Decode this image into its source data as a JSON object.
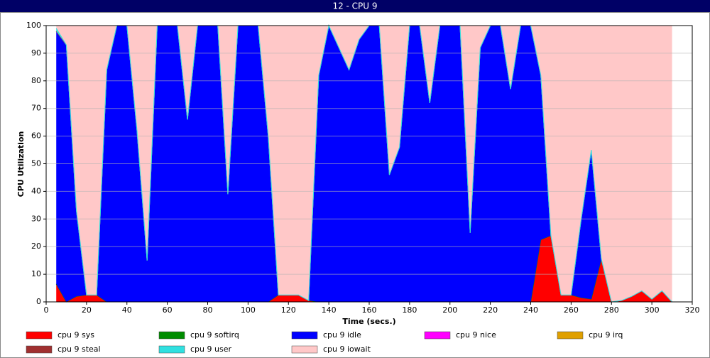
{
  "chart_data": {
    "type": "stacked_area",
    "title": "12 - CPU 9",
    "x_label": "Time (secs.)",
    "y_label": "CPU Utilization",
    "xlim": [
      0,
      320
    ],
    "xticks": [
      0,
      20,
      40,
      60,
      80,
      100,
      120,
      140,
      160,
      180,
      200,
      220,
      240,
      260,
      280,
      300,
      320
    ],
    "ylim": [
      0,
      100
    ],
    "yticks": [
      0,
      10,
      20,
      30,
      40,
      50,
      60,
      70,
      80,
      90,
      100
    ],
    "grid": true,
    "x": [
      5,
      10,
      15,
      20,
      25,
      30,
      35,
      40,
      45,
      50,
      55,
      60,
      65,
      70,
      75,
      80,
      85,
      90,
      95,
      100,
      105,
      110,
      115,
      120,
      125,
      130,
      135,
      140,
      145,
      150,
      155,
      160,
      165,
      170,
      175,
      180,
      185,
      190,
      195,
      200,
      205,
      210,
      215,
      220,
      225,
      230,
      235,
      240,
      245,
      250,
      255,
      260,
      265,
      270,
      275,
      280,
      285,
      290,
      295,
      300,
      305,
      310
    ],
    "series": [
      {
        "name": "cpu 9 sys",
        "color": "#ff0000",
        "values": [
          6.5,
          0,
          2,
          2.5,
          2.5,
          0,
          0,
          0,
          0,
          0,
          0,
          0,
          0,
          0,
          0,
          0,
          0,
          0,
          0,
          0,
          0,
          0,
          2.5,
          2.5,
          2.5,
          0.5,
          0,
          0,
          0,
          0,
          0,
          0,
          0,
          0,
          0,
          0,
          0,
          0,
          0,
          0,
          0,
          0,
          0,
          0,
          0,
          0,
          0,
          0,
          22.5,
          24,
          2.5,
          2.5,
          1.5,
          1,
          15.5,
          0,
          0.5,
          2,
          4,
          1,
          4,
          0
        ]
      },
      {
        "name": "cpu 9 softirq",
        "color": "#008c00",
        "values": [
          0,
          0,
          0,
          0,
          0,
          0,
          0,
          0,
          0,
          0,
          0,
          0,
          0,
          0,
          0,
          0,
          0,
          0,
          0,
          0,
          0,
          0,
          0,
          0,
          0,
          0,
          0,
          0,
          0,
          0,
          0,
          0,
          0,
          0,
          0,
          0,
          0,
          0,
          0,
          0,
          0,
          0,
          0,
          0,
          0,
          0,
          0,
          0,
          0,
          0,
          0,
          0,
          0,
          0,
          0,
          0,
          0,
          0,
          0,
          0,
          0,
          0
        ]
      },
      {
        "name": "cpu 9 idle",
        "color": "#0000ff",
        "values": [
          91.5,
          93,
          31,
          0,
          0,
          84,
          100,
          100,
          62,
          15,
          100,
          100,
          100,
          66,
          100,
          100,
          100,
          39,
          100,
          100,
          100,
          60,
          0,
          0,
          0,
          0,
          82,
          100,
          92,
          84,
          95,
          100,
          100,
          46,
          56,
          100,
          100,
          72,
          100,
          100,
          100,
          25,
          92,
          100,
          100,
          77,
          100,
          100,
          59.5,
          0,
          0,
          0,
          28.5,
          54,
          0,
          0,
          0,
          0,
          0,
          0,
          0,
          0
        ]
      },
      {
        "name": "cpu 9 nice",
        "color": "#ff00ff",
        "values": [
          0,
          0,
          0,
          0,
          0,
          0,
          0,
          0,
          0,
          0,
          0,
          0,
          0,
          0,
          0,
          0,
          0,
          0,
          0,
          0,
          0,
          0,
          0,
          0,
          0,
          0,
          0,
          0,
          0,
          0,
          0,
          0,
          0,
          0,
          0,
          0,
          0,
          0,
          0,
          0,
          0,
          0,
          0,
          0,
          0,
          0,
          0,
          0,
          0,
          0,
          0,
          0,
          0,
          0,
          0,
          0,
          0,
          0,
          0,
          0,
          0,
          0
        ]
      },
      {
        "name": "cpu 9 irq",
        "color": "#e0a000",
        "values": [
          0,
          0,
          0,
          0,
          0,
          0,
          0,
          0,
          0,
          0,
          0,
          0,
          0,
          0,
          0,
          0,
          0,
          0,
          0,
          0,
          0,
          0,
          0,
          0,
          0,
          0,
          0,
          0,
          0,
          0,
          0,
          0,
          0,
          0,
          0,
          0,
          0,
          0,
          0,
          0,
          0,
          0,
          0,
          0,
          0,
          0,
          0,
          0,
          0,
          0,
          0,
          0,
          0,
          0,
          0,
          0,
          0,
          0,
          0,
          0,
          0,
          0
        ]
      },
      {
        "name": "cpu 9 steal",
        "color": "#a03030",
        "values": [
          0,
          0,
          0,
          0,
          0,
          0,
          0,
          0,
          0,
          0,
          0,
          0,
          0,
          0,
          0,
          0,
          0,
          0,
          0,
          0,
          0,
          0,
          0,
          0,
          0,
          0,
          0,
          0,
          0,
          0,
          0,
          0,
          0,
          0,
          0,
          0,
          0,
          0,
          0,
          0,
          0,
          0,
          0,
          0,
          0,
          0,
          0,
          0,
          0,
          0,
          0,
          0,
          0,
          0,
          0,
          0,
          0,
          0,
          0,
          0,
          0,
          0
        ]
      },
      {
        "name": "cpu 9 user",
        "color": "#30e0e0",
        "values": [
          1,
          0,
          0,
          0,
          0,
          0,
          0,
          0,
          0,
          0,
          0,
          0,
          0,
          0,
          0,
          0,
          0,
          0,
          0,
          0,
          0,
          0,
          0,
          0,
          0,
          0,
          0,
          0,
          0,
          0,
          0,
          0,
          0,
          0,
          0,
          0,
          0,
          0,
          0,
          0,
          0,
          0,
          0,
          0,
          0,
          0,
          0,
          0,
          0,
          0,
          0,
          0,
          0,
          0,
          0,
          0,
          0,
          0,
          0,
          0,
          0,
          0
        ]
      },
      {
        "name": "cpu 9 iowait",
        "color": "#ffc8c8",
        "values": [
          1,
          7,
          67,
          97.5,
          97.5,
          16,
          0,
          0,
          38,
          85,
          0,
          0,
          0,
          34,
          0,
          0,
          0,
          61,
          0,
          0,
          0,
          40,
          97.5,
          97.5,
          97.5,
          99.5,
          18,
          0,
          8,
          16,
          5,
          0,
          0,
          54,
          44,
          0,
          0,
          28,
          0,
          0,
          0,
          75,
          8,
          0,
          0,
          23,
          0,
          0,
          18,
          76,
          97.5,
          97.5,
          70,
          45,
          84.5,
          100,
          99.5,
          98,
          96,
          99,
          96,
          100
        ]
      }
    ]
  }
}
